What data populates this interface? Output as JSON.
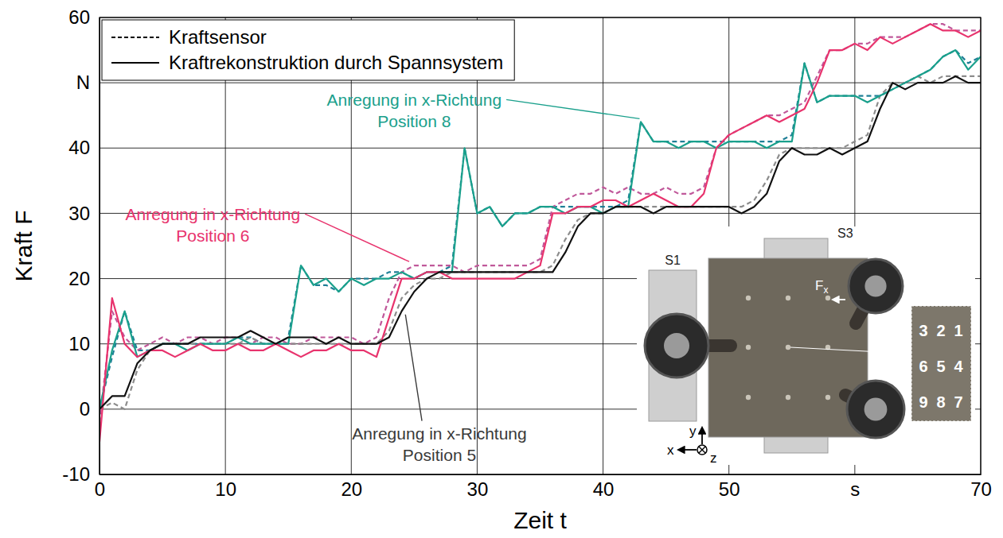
{
  "chart_data": {
    "type": "line",
    "xlabel": "Zeit t",
    "ylabel": "Kraft F",
    "xlim": [
      0,
      70
    ],
    "xticks": [
      0,
      10,
      20,
      30,
      40,
      50,
      {
        "value": 60,
        "label": "s"
      },
      70
    ],
    "ylim": [
      -10,
      60
    ],
    "yticks": [
      -10,
      0,
      10,
      20,
      30,
      40,
      {
        "value": 50,
        "label": "N"
      },
      60
    ],
    "grid": true,
    "legend": "upper left",
    "x": [
      0,
      1,
      2,
      3,
      4,
      5,
      6,
      7,
      8,
      9,
      10,
      11,
      12,
      13,
      14,
      15,
      16,
      17,
      18,
      19,
      20,
      21,
      22,
      23,
      24,
      25,
      26,
      27,
      28,
      29,
      30,
      31,
      32,
      33,
      34,
      35,
      36,
      37,
      38,
      39,
      40,
      41,
      42,
      43,
      44,
      45,
      46,
      47,
      48,
      49,
      50,
      51,
      52,
      53,
      54,
      55,
      56,
      57,
      58,
      59,
      60,
      61,
      62,
      63,
      64,
      65,
      66,
      67,
      68,
      69,
      70
    ],
    "series": [
      {
        "name": "Kraftsensor",
        "color": "#1f7f96",
        "line_style": "dashed",
        "values": [
          0,
          8,
          15,
          9,
          9,
          10,
          10,
          10,
          10,
          10,
          10,
          11,
          11,
          10,
          10,
          11,
          22,
          19,
          19,
          18,
          20,
          20,
          20,
          21,
          21,
          20,
          21,
          21,
          22,
          40,
          30,
          31,
          28,
          30,
          30,
          31,
          31,
          31,
          31,
          31,
          31,
          31,
          32,
          44,
          41,
          41,
          41,
          41,
          41,
          41,
          41,
          41,
          41,
          41,
          41,
          42,
          53,
          47,
          48,
          48,
          48,
          48,
          48,
          49,
          50,
          51,
          52,
          54,
          55,
          53,
          54
        ]
      },
      {
        "name": "Kraftrekonstruktion durch Spannsystem",
        "color": "#1aa08c",
        "line_style": "solid",
        "values": [
          0,
          9,
          15,
          8,
          9,
          10,
          10,
          9,
          10,
          10,
          10,
          11,
          10,
          10,
          10,
          10,
          22,
          19,
          20,
          18,
          20,
          19,
          20,
          20,
          21,
          20,
          21,
          21,
          21,
          40,
          30,
          31,
          28,
          30,
          30,
          31,
          31,
          30,
          31,
          31,
          30,
          31,
          31,
          44,
          41,
          41,
          40,
          41,
          41,
          40,
          41,
          41,
          41,
          40,
          41,
          41,
          53,
          47,
          48,
          48,
          48,
          47,
          48,
          49,
          50,
          51,
          52,
          54,
          55,
          52,
          54
        ]
      },
      {
        "name": "Kraftsensor",
        "color": "#c0589a",
        "line_style": "dashed",
        "values": [
          -2,
          15,
          11,
          9,
          10,
          11,
          10,
          11,
          11,
          10,
          11,
          11,
          10,
          11,
          11,
          10,
          10,
          11,
          11,
          11,
          11,
          10,
          11,
          17,
          21,
          22,
          22,
          22,
          22,
          21,
          22,
          22,
          22,
          22,
          22,
          23,
          31,
          32,
          33,
          33,
          34,
          33,
          34,
          33,
          33,
          34,
          33,
          33,
          34,
          40,
          42,
          43,
          44,
          45,
          45,
          46,
          47,
          51,
          55,
          55,
          56,
          56,
          57,
          57,
          57,
          58,
          59,
          59,
          58,
          58,
          58
        ]
      },
      {
        "name": "Kraftrekonstruktion durch Spannsystem",
        "color": "#e8336d",
        "line_style": "solid",
        "values": [
          -5,
          17,
          10,
          8,
          9,
          9,
          8,
          9,
          10,
          9,
          9,
          10,
          9,
          9,
          10,
          9,
          8,
          9,
          9,
          10,
          9,
          9,
          8,
          14,
          20,
          20,
          21,
          21,
          20,
          20,
          20,
          20,
          20,
          20,
          21,
          22,
          30,
          30,
          31,
          31,
          32,
          32,
          31,
          32,
          33,
          32,
          31,
          31,
          33,
          40,
          42,
          43,
          44,
          45,
          44,
          45,
          46,
          50,
          55,
          55,
          56,
          55,
          57,
          56,
          57,
          58,
          59,
          58,
          58,
          57,
          58
        ]
      },
      {
        "name": "Kraftsensor",
        "color": "#8c8c8c",
        "line_style": "dashed",
        "values": [
          0,
          1,
          0,
          6,
          9,
          10,
          10,
          10,
          10,
          10,
          10,
          10,
          11,
          10,
          10,
          10,
          10,
          10,
          10,
          10,
          10,
          10,
          10,
          12,
          17,
          19,
          20,
          20,
          21,
          21,
          21,
          21,
          21,
          21,
          21,
          21,
          22,
          26,
          29,
          30,
          30,
          31,
          31,
          31,
          31,
          31,
          31,
          31,
          31,
          31,
          31,
          31,
          32,
          35,
          39,
          40,
          40,
          40,
          40,
          40,
          41,
          42,
          48,
          50,
          50,
          51,
          50,
          51,
          51,
          51,
          51
        ]
      },
      {
        "name": "Kraftrekonstruktion durch Spannsystem",
        "color": "#111111",
        "line_style": "solid",
        "values": [
          0,
          2,
          2,
          7,
          9,
          10,
          10,
          10,
          11,
          11,
          11,
          11,
          12,
          11,
          10,
          11,
          11,
          11,
          10,
          11,
          10,
          10,
          10,
          11,
          15,
          18,
          20,
          21,
          21,
          21,
          21,
          21,
          21,
          21,
          21,
          21,
          21,
          24,
          28,
          30,
          30,
          31,
          31,
          31,
          30,
          31,
          31,
          31,
          31,
          31,
          31,
          30,
          31,
          33,
          38,
          40,
          39,
          39,
          40,
          39,
          40,
          41,
          46,
          50,
          49,
          50,
          50,
          50,
          51,
          50,
          50
        ]
      }
    ],
    "annotations": [
      {
        "lines": [
          "Anregung in x-Richtung",
          "Position 8"
        ],
        "color": "#1aa08c"
      },
      {
        "lines": [
          "Anregung in x-Richtung",
          "Position 6"
        ],
        "color": "#e8336d"
      },
      {
        "lines": [
          "Anregung in x-Richtung",
          "Position 5"
        ],
        "color": "#3a3a3a"
      }
    ],
    "inset": {
      "clamp_labels": [
        "S1",
        "S3"
      ],
      "force_symbol": "F",
      "force_index": "x",
      "positions": [
        [
          3,
          2,
          1
        ],
        [
          6,
          5,
          4
        ],
        [
          9,
          8,
          7
        ]
      ],
      "axes": [
        "x",
        "y",
        "z"
      ]
    }
  }
}
